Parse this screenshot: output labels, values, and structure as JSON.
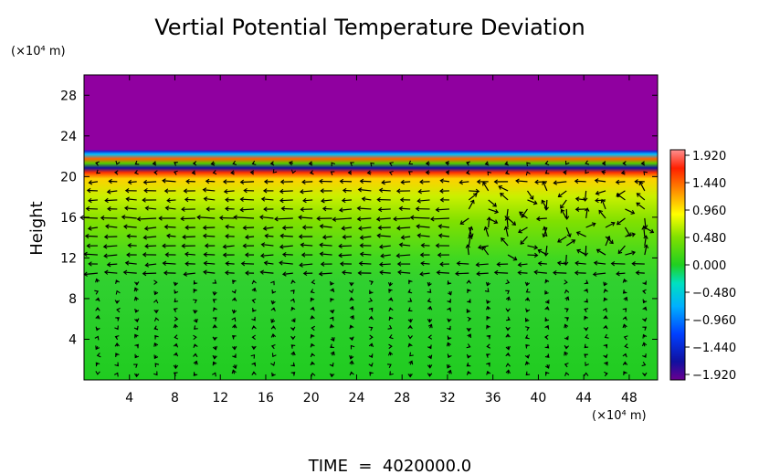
{
  "chart_data": {
    "type": "heatmap",
    "title": "Vertial Potential Temperature Deviation",
    "ylabel": "Height",
    "y_unit": "(×10⁴ m)",
    "x_unit": "(×10⁴ m)",
    "footer": "TIME  =  4020000.0",
    "x_ticks": [
      "4",
      "8",
      "12",
      "16",
      "20",
      "24",
      "28",
      "32",
      "36",
      "40",
      "44",
      "48"
    ],
    "y_ticks": [
      "4",
      "8",
      "12",
      "16",
      "20",
      "24",
      "28"
    ],
    "xlim": [
      0,
      50.5
    ],
    "ylim": [
      0,
      30
    ],
    "colorbar": {
      "labels": [
        "1.920",
        "1.440",
        "0.960",
        "0.480",
        "0.000",
        "−0.480",
        "−0.960",
        "−1.440",
        "−1.920"
      ],
      "range": [
        -1.92,
        1.92
      ]
    },
    "layers": [
      {
        "y": [
          0,
          10
        ],
        "value": 0.0,
        "description": ""
      },
      {
        "y": [
          10,
          16
        ],
        "value": 0.2
      },
      {
        "y": [
          16,
          19
        ],
        "value": 0.6
      },
      {
        "y": [
          19,
          20
        ],
        "value": 1.6
      },
      {
        "y": [
          20,
          21
        ],
        "value": -1.7
      },
      {
        "y": [
          21,
          22.5
        ],
        "value": 0.9
      },
      {
        "y": [
          22.5,
          30
        ],
        "value": -1.92
      }
    ],
    "vector_field": true
  }
}
